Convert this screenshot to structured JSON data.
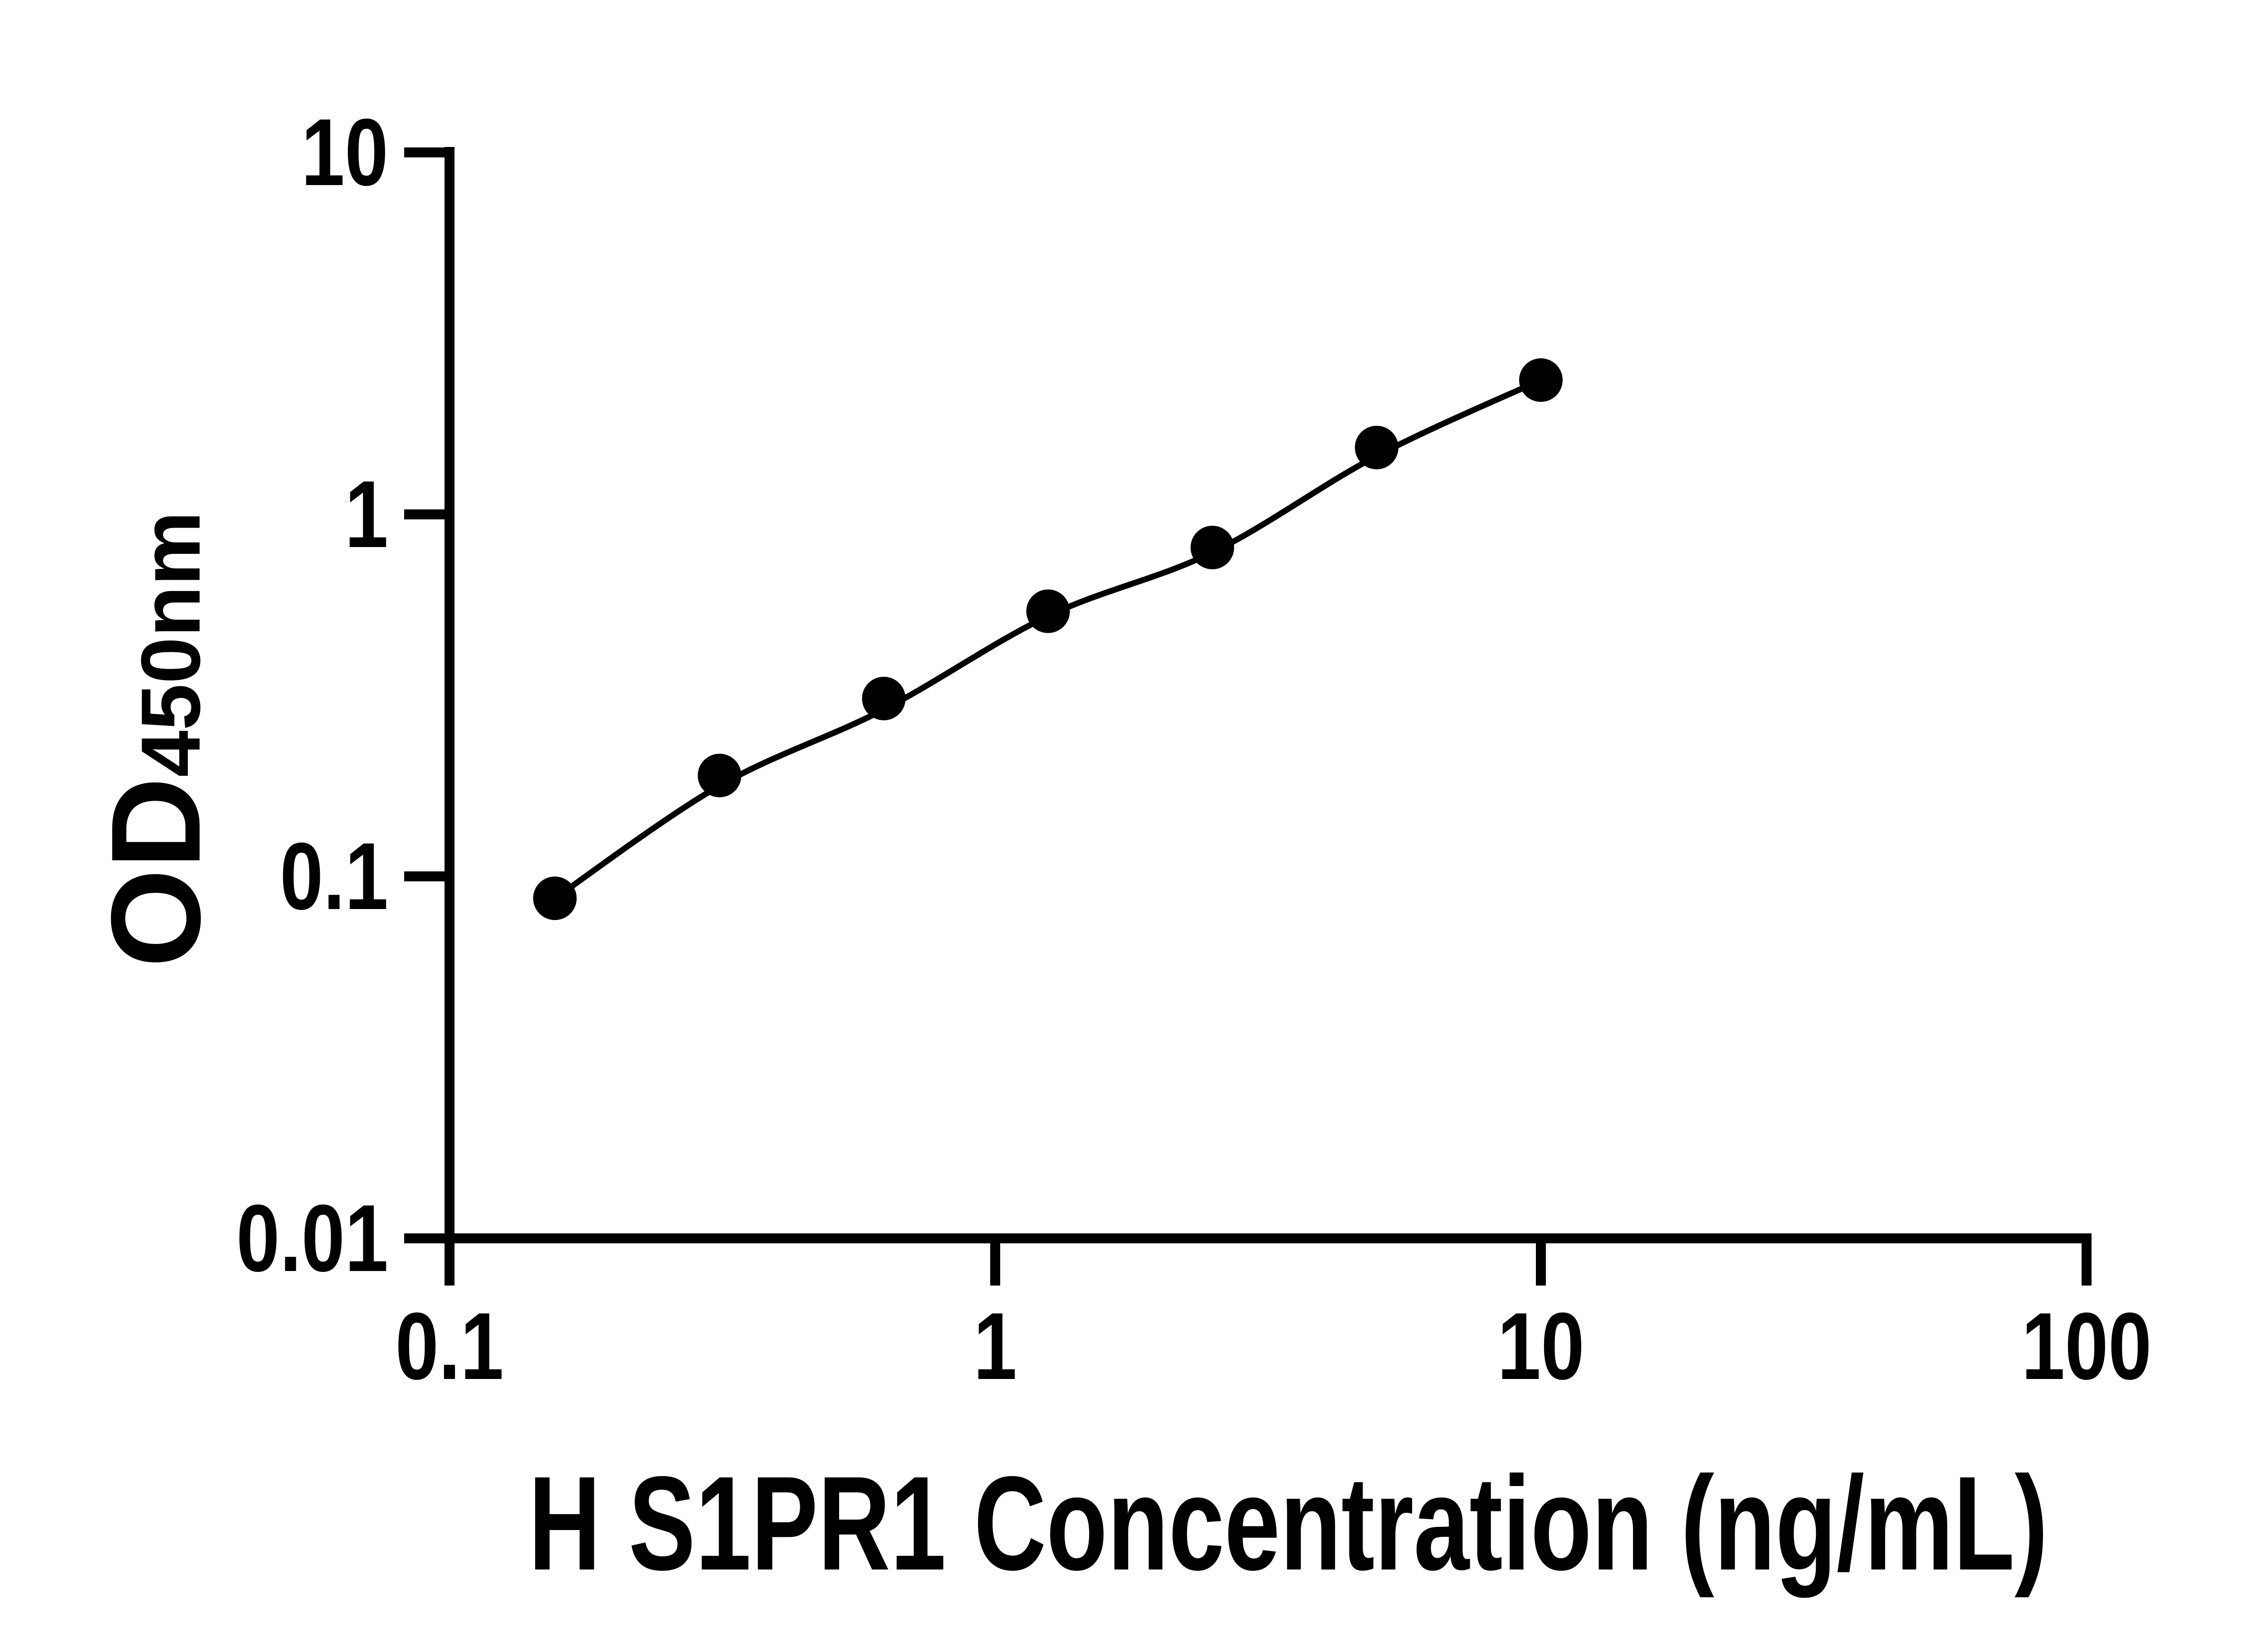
{
  "chart_data": {
    "type": "scatter",
    "title": "",
    "xlabel": "H S1PR1 Concentration (ng/mL)",
    "ylabel_main": "OD",
    "ylabel_sub": "450nm",
    "x_scale": "log",
    "y_scale": "log",
    "xlim": [
      0.1,
      100
    ],
    "ylim": [
      0.01,
      10
    ],
    "grid": false,
    "legend": "none",
    "marker_shape": "filled-circle",
    "marker_color": "#000000",
    "curve_color": "#000000",
    "background_color": "#ffffff",
    "x_ticks": [
      {
        "value": 0.1,
        "label": "0.1"
      },
      {
        "value": 1,
        "label": "1"
      },
      {
        "value": 10,
        "label": "10"
      },
      {
        "value": 100,
        "label": "100"
      }
    ],
    "y_ticks": [
      {
        "value": 0.01,
        "label": "0.01"
      },
      {
        "value": 0.1,
        "label": "0.1"
      },
      {
        "value": 1,
        "label": "1"
      },
      {
        "value": 10,
        "label": "10"
      }
    ],
    "points": [
      {
        "x": 0.156,
        "y": 0.087
      },
      {
        "x": 0.3125,
        "y": 0.19
      },
      {
        "x": 0.625,
        "y": 0.31
      },
      {
        "x": 1.25,
        "y": 0.54
      },
      {
        "x": 2.5,
        "y": 0.81
      },
      {
        "x": 5,
        "y": 1.53
      },
      {
        "x": 10,
        "y": 2.35
      }
    ],
    "fit_curve": [
      {
        "x": 0.156,
        "y": 0.087
      },
      {
        "x": 0.3125,
        "y": 0.178
      },
      {
        "x": 0.625,
        "y": 0.289
      },
      {
        "x": 1.25,
        "y": 0.524
      },
      {
        "x": 2.5,
        "y": 0.785
      },
      {
        "x": 5,
        "y": 1.45
      },
      {
        "x": 10,
        "y": 2.35
      }
    ]
  }
}
